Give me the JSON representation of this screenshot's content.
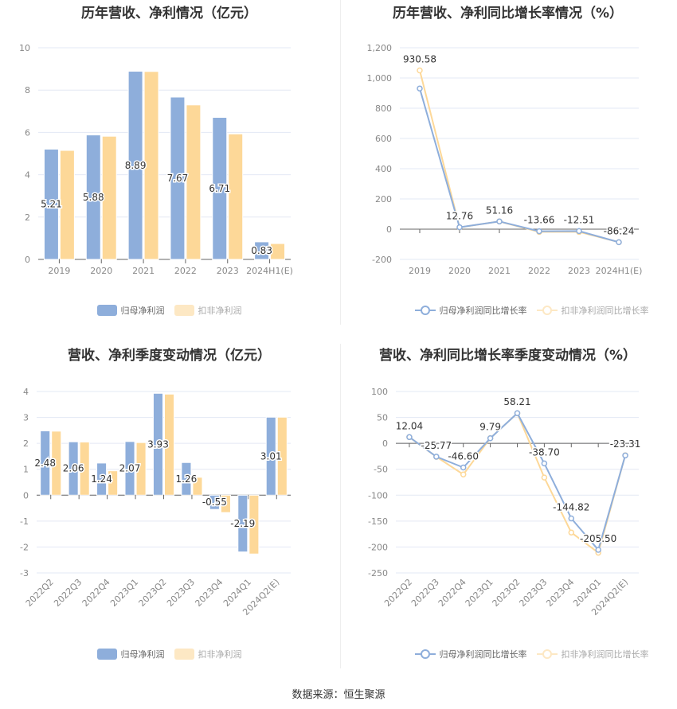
{
  "colors": {
    "series1": "#8eaedb",
    "series2": "#fdd898",
    "series2_legend": "#fde8c4"
  },
  "source": "数据来源：恒生聚源",
  "chart_data": [
    {
      "type": "bar",
      "title": "历年营收、净利情况（亿元）",
      "categories": [
        "2019",
        "2020",
        "2021",
        "2022",
        "2023",
        "2024H1(E)"
      ],
      "ylim": [
        0,
        10
      ],
      "yticks": [
        0,
        2,
        4,
        6,
        8,
        10
      ],
      "grid": true,
      "legend": "bottom",
      "series": [
        {
          "name": "归母净利润",
          "values": [
            5.21,
            5.88,
            8.89,
            7.67,
            6.71,
            0.83
          ],
          "labels": [
            "5.21",
            "5.88",
            "8.89",
            "7.67",
            "6.71",
            "0.83"
          ]
        },
        {
          "name": "扣非净利润",
          "values": [
            5.15,
            5.82,
            8.88,
            7.3,
            5.93,
            0.75
          ]
        }
      ]
    },
    {
      "type": "line",
      "title": "历年营收、净利同比增长率情况（%）",
      "categories": [
        "2019",
        "2020",
        "2021",
        "2022",
        "2023",
        "2024H1(E)"
      ],
      "ylim": [
        -200,
        1200
      ],
      "yticks": [
        -200,
        0,
        200,
        400,
        600,
        800,
        1000,
        1200
      ],
      "ytick_labels": [
        "-200",
        "0",
        "200",
        "400",
        "600",
        "800",
        "1,000",
        "1,200"
      ],
      "grid": true,
      "legend": "bottom",
      "series": [
        {
          "name": "归母净利润同比增长率",
          "values": [
            930.58,
            12.76,
            51.16,
            -13.66,
            -12.51,
            -86.24
          ],
          "labels": [
            "930.58",
            "12.76",
            "51.16",
            "-13.66",
            "-12.51",
            "-86.24"
          ]
        },
        {
          "name": "扣非净利润同比增长率",
          "values": [
            1050,
            12,
            51,
            -18,
            -18,
            -86
          ]
        }
      ]
    },
    {
      "type": "bar",
      "title": "营收、净利季度变动情况（亿元）",
      "categories": [
        "2022Q2",
        "2022Q3",
        "2022Q4",
        "2023Q1",
        "2023Q2",
        "2023Q3",
        "2023Q4",
        "2024Q1",
        "2024Q2(E)"
      ],
      "ylim": [
        -3,
        4
      ],
      "yticks": [
        -3,
        -2,
        -1,
        0,
        1,
        2,
        3,
        4
      ],
      "grid": true,
      "legend": "bottom",
      "series": [
        {
          "name": "归母净利润",
          "values": [
            2.48,
            2.06,
            1.24,
            2.07,
            3.93,
            1.26,
            -0.55,
            -2.19,
            3.01
          ],
          "labels": [
            "2.48",
            "2.06",
            "1.24",
            "2.07",
            "3.93",
            "1.26",
            "-0.55",
            "-2.19",
            "3.01"
          ]
        },
        {
          "name": "扣非净利润",
          "values": [
            2.47,
            2.05,
            0.94,
            2.03,
            3.9,
            0.69,
            -0.67,
            -2.27,
            3.01
          ]
        }
      ]
    },
    {
      "type": "line",
      "title": "营收、净利同比增长率季度变动情况（%）",
      "categories": [
        "2022Q2",
        "2022Q3",
        "2022Q4",
        "2023Q1",
        "2023Q2",
        "2023Q3",
        "2023Q4",
        "2024Q1",
        "2024Q2(E)"
      ],
      "ylim": [
        -250,
        100
      ],
      "yticks": [
        -250,
        -200,
        -150,
        -100,
        -50,
        0,
        50,
        100
      ],
      "grid": true,
      "legend": "bottom",
      "series": [
        {
          "name": "归母净利润同比增长率",
          "values": [
            12.04,
            -25.77,
            -46.6,
            9.79,
            58.21,
            -38.7,
            -144.82,
            -205.5,
            -23.31
          ],
          "labels": [
            "12.04",
            "-25.77",
            "-46.60",
            "9.79",
            "58.21",
            "-38.70",
            "-144.82",
            "-205.50",
            "-23.31"
          ]
        },
        {
          "name": "扣非净利润同比增长率",
          "values": [
            12,
            -26,
            -60,
            10,
            58,
            -66,
            -172,
            -211,
            -23
          ]
        }
      ]
    }
  ]
}
